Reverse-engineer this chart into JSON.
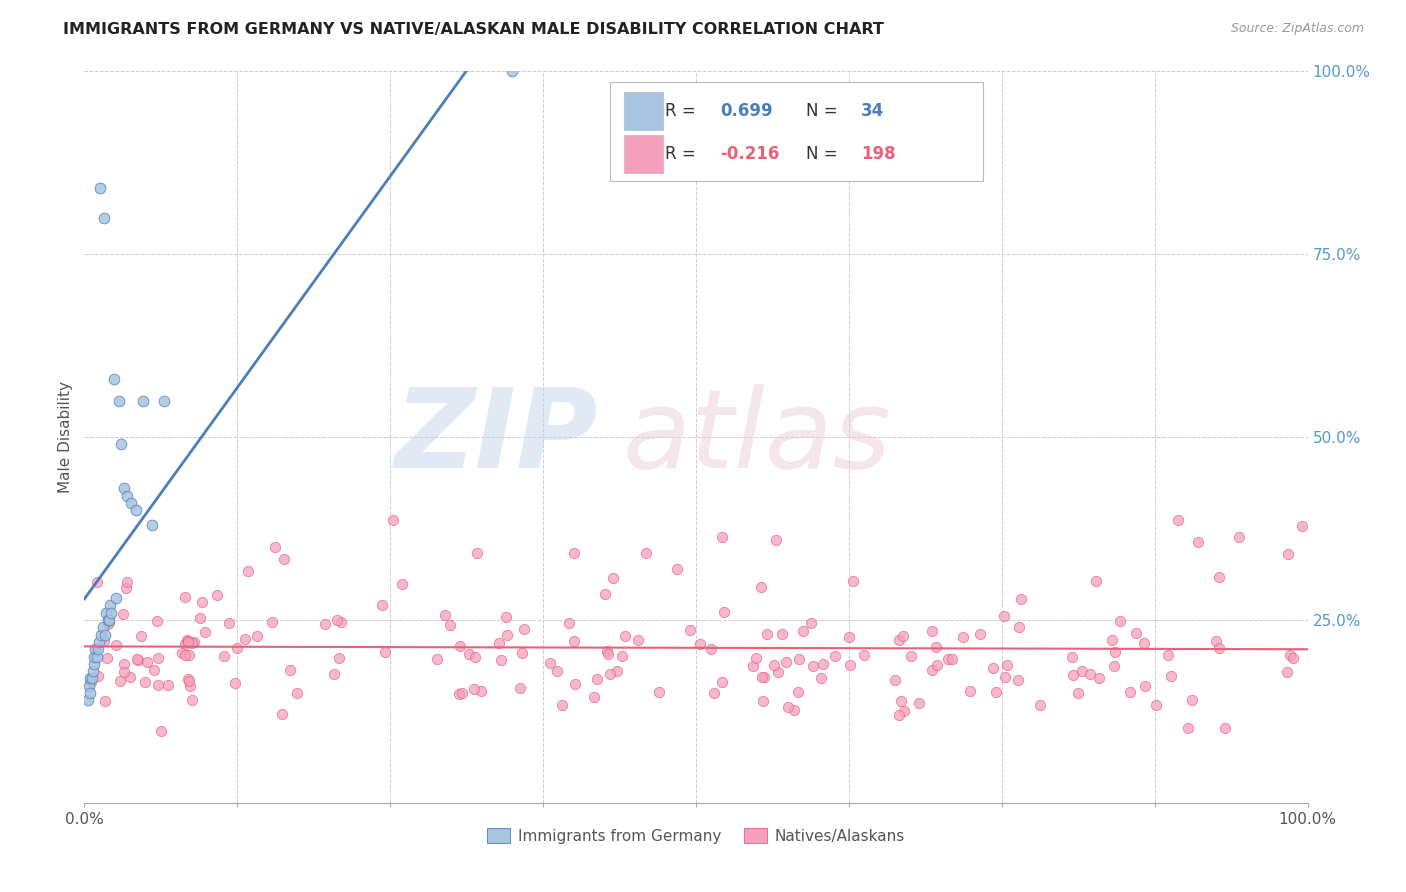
{
  "title": "IMMIGRANTS FROM GERMANY VS NATIVE/ALASKAN MALE DISABILITY CORRELATION CHART",
  "source": "Source: ZipAtlas.com",
  "ylabel": "Male Disability",
  "right_yticks": [
    "100.0%",
    "75.0%",
    "50.0%",
    "25.0%"
  ],
  "right_ytick_vals": [
    1.0,
    0.75,
    0.5,
    0.25
  ],
  "legend_label_1": "Immigrants from Germany",
  "legend_label_2": "Natives/Alaskans",
  "R1": 0.699,
  "N1": 34,
  "R2": -0.216,
  "N2": 198,
  "color_blue": "#A8C4E0",
  "color_blue_line": "#4A7FBB",
  "color_pink": "#F4A0BC",
  "color_pink_line": "#E8607A",
  "color_blue_r": "#4A7FBB",
  "color_pink_r": "#E8607A",
  "background": "#FFFFFF",
  "grid_color": "#CCCCCC"
}
